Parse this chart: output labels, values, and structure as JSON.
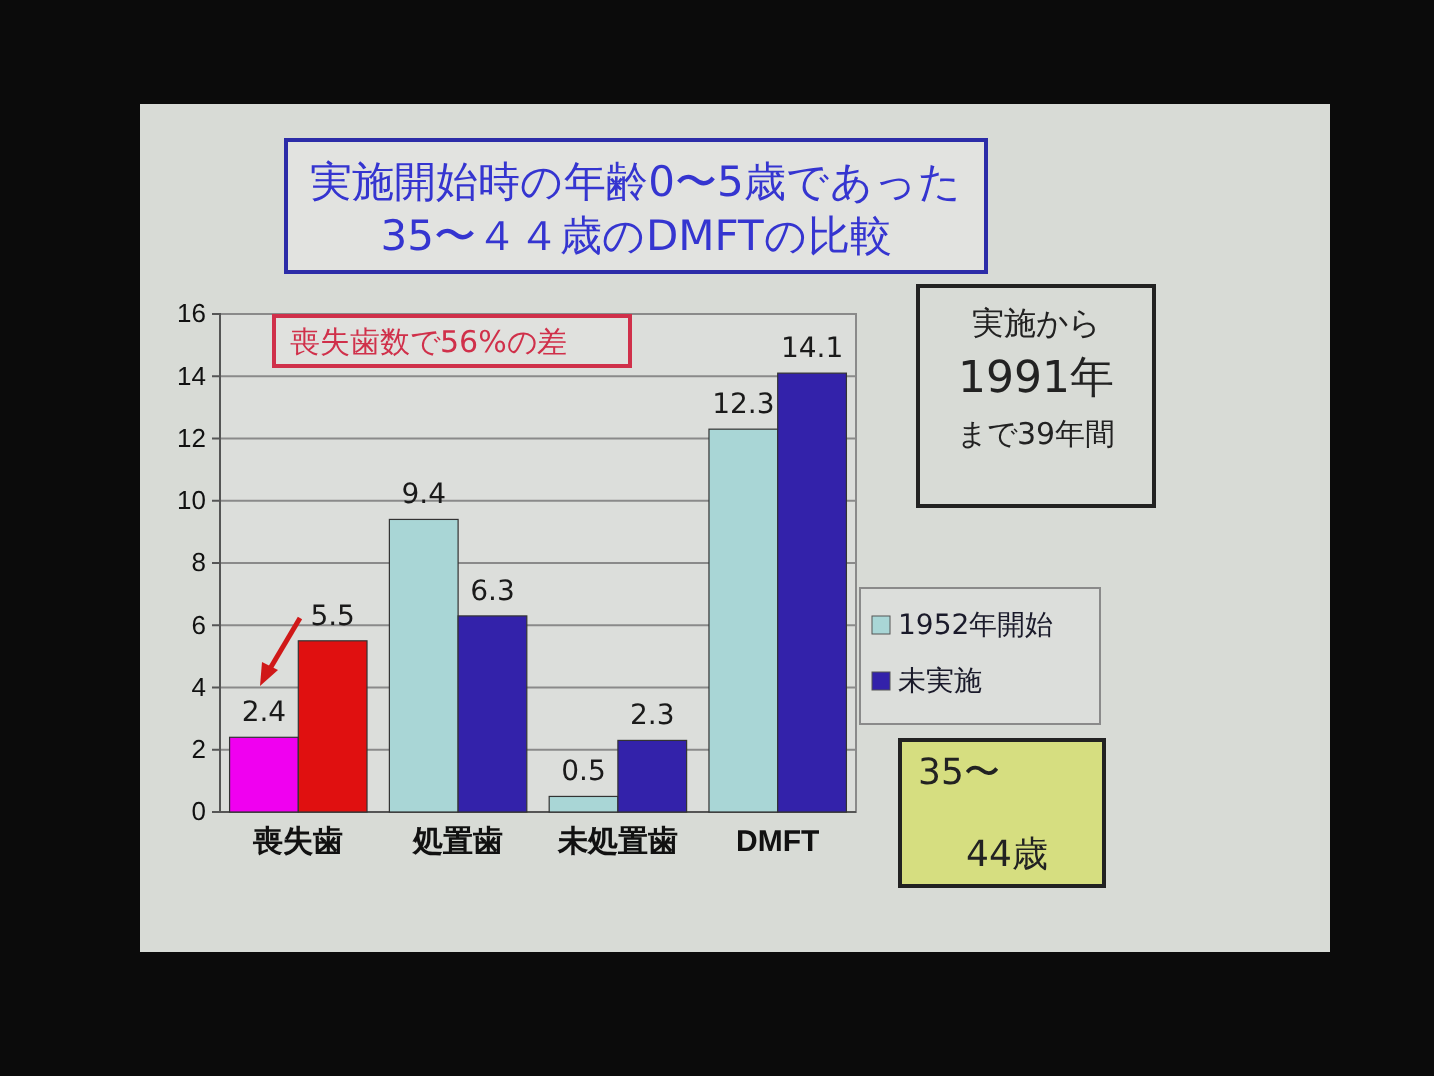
{
  "chart_data": {
    "type": "bar",
    "title": "実施開始時の年齢0〜5歳であった\n35〜４４歳のDMFTの比較",
    "categories": [
      "喪失歯",
      "処置歯",
      "未処置歯",
      "DMFT"
    ],
    "series": [
      {
        "name": "1952年開始",
        "color": "#a9d6d6",
        "colors": [
          "#f000f0",
          "#a9d6d6",
          "#a9d6d6",
          "#a9d6d6"
        ],
        "values": [
          2.4,
          9.4,
          0.5,
          12.3
        ]
      },
      {
        "name": "未実施",
        "color": "#3322aa",
        "colors": [
          "#e01010",
          "#3322aa",
          "#3322aa",
          "#3322aa"
        ],
        "values": [
          5.5,
          6.3,
          2.3,
          14.1
        ]
      }
    ],
    "ylim": [
      0,
      16
    ],
    "yticks": [
      0,
      2,
      4,
      6,
      8,
      10,
      12,
      14,
      16
    ],
    "grid": "y",
    "legend": "right",
    "data_labels": true,
    "annotations": [
      "喪失歯数で56%の差",
      "実施から",
      "1991年",
      "まで39年間",
      "35〜",
      "44歳"
    ]
  }
}
